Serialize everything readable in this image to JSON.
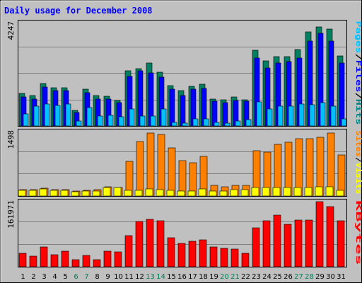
{
  "chart_data": {
    "type": "bar",
    "title": "Daily usage for December 2008",
    "categories": [
      "1",
      "2",
      "3",
      "4",
      "5",
      "6",
      "7",
      "8",
      "9",
      "10",
      "11",
      "12",
      "13",
      "14",
      "15",
      "16",
      "17",
      "18",
      "19",
      "20",
      "21",
      "22",
      "23",
      "24",
      "25",
      "26",
      "27",
      "28",
      "29",
      "30",
      "31"
    ],
    "weekend_days": [
      "6",
      "7",
      "13",
      "14",
      "20",
      "21",
      "27",
      "28"
    ],
    "panels": [
      {
        "id": "hits",
        "ymax_label": "4247",
        "ylim": [
          0,
          4247
        ],
        "right_labels": [
          {
            "text": "Pages",
            "color": "#00c0ff"
          },
          {
            "text": "/",
            "color": "#000000"
          },
          {
            "text": "Files",
            "color": "#0000ff"
          },
          {
            "text": "/",
            "color": "#000000"
          },
          {
            "text": "Hits",
            "color": "#008080"
          }
        ],
        "series": [
          {
            "name": "Hits",
            "color": "#008060",
            "values": [
              1350,
              1250,
              1750,
              1570,
              1570,
              650,
              1520,
              1250,
              1230,
              1050,
              2280,
              2360,
              2580,
              2220,
              1650,
              1450,
              1620,
              1730,
              1100,
              1080,
              1200,
              1080,
              3120,
              2680,
              2850,
              2850,
              3150,
              3860,
              4080,
              3980,
              2870
            ]
          },
          {
            "name": "Files",
            "color": "#0000ff",
            "values": [
              1200,
              1100,
              1600,
              1450,
              1450,
              550,
              1380,
              1100,
              1100,
              950,
              2050,
              2280,
              2180,
              2000,
              1500,
              1250,
              1500,
              1550,
              1030,
              960,
              1050,
              1010,
              2800,
              2380,
              2600,
              2650,
              2800,
              3500,
              3820,
              3500,
              2600
            ]
          },
          {
            "name": "Pages",
            "color": "#00c0ff",
            "values": [
              500,
              800,
              900,
              850,
              900,
              200,
              750,
              400,
              450,
              380,
              700,
              400,
              420,
              700,
              150,
              130,
              300,
              280,
              150,
              130,
              200,
              260,
              1000,
              700,
              800,
              800,
              900,
              880,
              950,
              800,
              300
            ]
          }
        ]
      },
      {
        "id": "visits",
        "ymax_label": "1498",
        "ylim": [
          0,
          1498
        ],
        "right_labels": [
          {
            "text": "Sites",
            "color": "#ff8000"
          },
          {
            "text": "/",
            "color": "#000000"
          },
          {
            "text": "Visits",
            "color": "#ffff00"
          }
        ],
        "series": [
          {
            "name": "Visits",
            "color": "#ff8000",
            "values": [
              150,
              150,
              180,
              150,
              150,
              110,
              130,
              150,
              210,
              200,
              810,
              1270,
              1470,
              1430,
              1120,
              830,
              780,
              930,
              240,
              210,
              240,
              240,
              1060,
              1020,
              1200,
              1250,
              1330,
              1330,
              1370,
              1470,
              960
            ]
          },
          {
            "name": "Sites",
            "color": "#ffff00",
            "values": [
              130,
              130,
              170,
              130,
              130,
              100,
              120,
              120,
              200,
              190,
              130,
              130,
              170,
              150,
              130,
              110,
              120,
              170,
              110,
              120,
              140,
              150,
              200,
              200,
              200,
              200,
              200,
              200,
              220,
              220,
              130
            ]
          }
        ]
      },
      {
        "id": "kbytes",
        "ymax_label": "161971",
        "ylim": [
          0,
          161971
        ],
        "right_labels": [
          {
            "text": "KBytes",
            "color": "#ff0000"
          }
        ],
        "series": [
          {
            "name": "KBytes",
            "color": "#ff0000",
            "values": [
              33000,
              26000,
              50000,
              30000,
              39000,
              17000,
              28000,
              17000,
              39000,
              37000,
              78000,
              112000,
              118000,
              115000,
              72000,
              58000,
              63000,
              67000,
              49000,
              46000,
              44000,
              33000,
              96000,
              115000,
              128000,
              106000,
              116000,
              116000,
              161971,
              150000,
              115000
            ]
          }
        ]
      }
    ]
  }
}
